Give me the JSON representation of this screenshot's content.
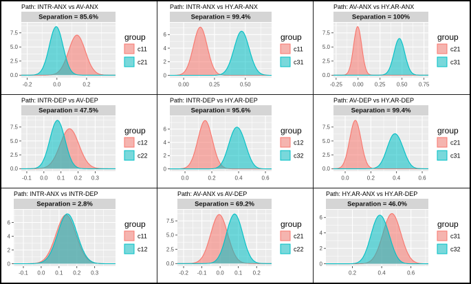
{
  "figure": {
    "legend_title": "group",
    "colors": {
      "pink_stroke": "#F8766D",
      "pink_fill": "rgba(248,118,109,0.55)",
      "pink_key_fill": "#F5B4AF",
      "teal_stroke": "#00BFC4",
      "teal_fill": "rgba(0,191,196,0.55)",
      "teal_key_fill": "#79D8DB",
      "panel_bg": "#EBEBEB",
      "strip_bg": "#D5D5D5",
      "gridline": "#FFFFFF",
      "axis_text": "#4D4D4D",
      "tick_mark": "#333333",
      "title_text": "#000000",
      "border": "#000000"
    }
  },
  "chart_data": {
    "type": "area",
    "subtype": "density-grid-3x3",
    "legend_title": "group",
    "panels": [
      {
        "title": "Path: INTR-ANX vs AV-ANX",
        "separation_label": "Separation = 85.6%",
        "xlim": [
          -0.24,
          0.395
        ],
        "xticks": [
          -0.2,
          0.0,
          0.2
        ],
        "xtick_labels": [
          "-0.2",
          "0.0",
          "0.2"
        ],
        "ylim": [
          -0.45,
          9.3
        ],
        "yticks": [
          0,
          2.5,
          5,
          7.5
        ],
        "ytick_labels": [
          "0.0",
          "2.5",
          "5.0",
          "7.5"
        ],
        "series": [
          {
            "name": "c11",
            "color": "pink",
            "peak": 7.1,
            "components": [
              {
                "m": 0.135,
                "s": 0.0562,
                "w": 1
              }
            ]
          },
          {
            "name": "c21",
            "color": "teal",
            "peak": 8.6,
            "components": [
              {
                "m": -0.005,
                "s": 0.0464,
                "w": 1
              }
            ]
          }
        ]
      },
      {
        "title": "Path: INTR-ANX vs HY.AR-ANX",
        "separation_label": "Separation = 99.4%",
        "xlim": [
          -0.112,
          0.713
        ],
        "xticks": [
          0.0,
          0.25,
          0.5
        ],
        "xtick_labels": [
          "0.00",
          "0.25",
          "0.50"
        ],
        "ylim": [
          -0.35,
          7.75
        ],
        "yticks": [
          0,
          2,
          4,
          6
        ],
        "ytick_labels": [
          "0",
          "2",
          "4",
          "6"
        ],
        "series": [
          {
            "name": "c11",
            "color": "pink",
            "peak": 7.1,
            "components": [
              {
                "m": 0.135,
                "s": 0.0562,
                "w": 1
              }
            ]
          },
          {
            "name": "c31",
            "color": "teal",
            "peak": 6.5,
            "components": [
              {
                "m": 0.47,
                "s": 0.0614,
                "w": 1
              }
            ]
          }
        ]
      },
      {
        "title": "Path: AV-ANX vs HY.AR-ANX",
        "separation_label": "Separation = 100%",
        "xlim": [
          -0.28,
          0.8
        ],
        "xticks": [
          -0.25,
          0.0,
          0.25,
          0.5,
          0.75
        ],
        "xtick_labels": [
          "-0.25",
          "0.00",
          "0.25",
          "0.50",
          "0.75"
        ],
        "ylim": [
          -0.45,
          9.3
        ],
        "yticks": [
          0,
          2.5,
          5,
          7.5
        ],
        "ytick_labels": [
          "0.0",
          "2.5",
          "5.0",
          "7.5"
        ],
        "series": [
          {
            "name": "c21",
            "color": "pink",
            "peak": 8.6,
            "components": [
              {
                "m": -0.005,
                "s": 0.0464,
                "w": 1
              }
            ]
          },
          {
            "name": "c31",
            "color": "teal",
            "peak": 6.5,
            "components": [
              {
                "m": 0.47,
                "s": 0.0614,
                "w": 1
              }
            ]
          }
        ]
      },
      {
        "title": "Path: INTR-DEP vs AV-DEP",
        "separation_label": "Separation = 47.5%",
        "xlim": [
          -0.132,
          0.419
        ],
        "xticks": [
          -0.1,
          0.0,
          0.1,
          0.2,
          0.3
        ],
        "xtick_labels": [
          "-0.1",
          "0.0",
          "0.1",
          "0.2",
          "0.3"
        ],
        "ylim": [
          -0.45,
          9.45
        ],
        "yticks": [
          0,
          2.5,
          5,
          7.5
        ],
        "ytick_labels": [
          "0.0",
          "2.5",
          "5.0",
          "7.5"
        ],
        "series": [
          {
            "name": "c12",
            "color": "pink",
            "peak": 7.2,
            "components": [
              {
                "m": 0.15,
                "s": 0.055,
                "w": 1
              }
            ]
          },
          {
            "name": "c22",
            "color": "teal",
            "peak": 8.7,
            "components": [
              {
                "m": 0.062,
                "s": 0.04,
                "w": 1
              },
              {
                "m": 0.097,
                "s": 0.04,
                "w": 0.97
              }
            ]
          }
        ]
      },
      {
        "title": "Path: INTR-DEP vs HY.AR-DEP",
        "separation_label": "Separation = 95.6%",
        "xlim": [
          -0.113,
          0.646
        ],
        "xticks": [
          0.0,
          0.2,
          0.4,
          0.6
        ],
        "xtick_labels": [
          "0.0",
          "0.2",
          "0.4",
          "0.6"
        ],
        "ylim": [
          -0.35,
          7.95
        ],
        "yticks": [
          0,
          2,
          4,
          6
        ],
        "ytick_labels": [
          "0",
          "2",
          "4",
          "6"
        ],
        "series": [
          {
            "name": "c12",
            "color": "pink",
            "peak": 7.3,
            "components": [
              {
                "m": 0.15,
                "s": 0.054,
                "w": 1
              }
            ]
          },
          {
            "name": "c32",
            "color": "teal",
            "peak": 6.3,
            "components": [
              {
                "m": 0.372,
                "s": 0.052,
                "w": 1
              },
              {
                "m": 0.437,
                "s": 0.046,
                "w": 0.42
              }
            ]
          }
        ]
      },
      {
        "title": "Path: AV-DEP vs HY.AR-DEP",
        "separation_label": "Separation = 99.4%",
        "xlim": [
          -0.091,
          0.648
        ],
        "xticks": [
          0.0,
          0.2,
          0.4,
          0.6
        ],
        "xtick_labels": [
          "0.0",
          "0.2",
          "0.4",
          "0.6"
        ],
        "ylim": [
          -0.45,
          9.45
        ],
        "yticks": [
          0,
          2.5,
          5,
          7.5
        ],
        "ytick_labels": [
          "0.0",
          "2.5",
          "5.0",
          "7.5"
        ],
        "series": [
          {
            "name": "c21",
            "color": "pink",
            "peak": 8.7,
            "components": [
              {
                "m": 0.062,
                "s": 0.04,
                "w": 1
              },
              {
                "m": 0.097,
                "s": 0.04,
                "w": 0.97
              }
            ]
          },
          {
            "name": "c31",
            "color": "teal",
            "peak": 6.3,
            "components": [
              {
                "m": 0.372,
                "s": 0.052,
                "w": 1
              },
              {
                "m": 0.437,
                "s": 0.046,
                "w": 0.42
              }
            ]
          }
        ]
      },
      {
        "title": "Path: INTR-ANX vs INTR-DEP",
        "separation_label": "Separation = 2.8%",
        "xlim": [
          -0.154,
          0.417
        ],
        "xticks": [
          -0.1,
          0.0,
          0.1,
          0.2,
          0.3
        ],
        "xtick_labels": [
          "-0.1",
          "0.0",
          "0.1",
          "0.2",
          "0.3"
        ],
        "ylim": [
          -0.35,
          7.85
        ],
        "yticks": [
          0,
          2,
          4,
          6
        ],
        "ytick_labels": [
          "0",
          "2",
          "4",
          "6"
        ],
        "series": [
          {
            "name": "c11",
            "color": "pink",
            "peak": 7.1,
            "components": [
              {
                "m": 0.139,
                "s": 0.056,
                "w": 1
              }
            ]
          },
          {
            "name": "c12",
            "color": "teal",
            "peak": 7.25,
            "components": [
              {
                "m": 0.147,
                "s": 0.0545,
                "w": 1
              }
            ]
          }
        ]
      },
      {
        "title": "Path: AV-ANX vs AV-DEP",
        "separation_label": "Separation = 69.2%",
        "xlim": [
          -0.234,
          0.282
        ],
        "xticks": [
          -0.2,
          -0.1,
          0.0,
          0.1,
          0.2
        ],
        "xtick_labels": [
          "-0.2",
          "-0.1",
          "0.0",
          "0.1",
          "0.2"
        ],
        "ylim": [
          -0.45,
          9.45
        ],
        "yticks": [
          0,
          2.5,
          5,
          7.5
        ],
        "ytick_labels": [
          "0.0",
          "2.5",
          "5.0",
          "7.5"
        ],
        "series": [
          {
            "name": "c21",
            "color": "pink",
            "peak": 8.6,
            "components": [
              {
                "m": -0.005,
                "s": 0.0464,
                "w": 1
              }
            ]
          },
          {
            "name": "c22",
            "color": "teal",
            "peak": 8.7,
            "components": [
              {
                "m": 0.062,
                "s": 0.04,
                "w": 1
              },
              {
                "m": 0.097,
                "s": 0.04,
                "w": 0.97
              }
            ]
          }
        ]
      },
      {
        "title": "Path: HY.AR-ANX vs HY.AR-DEP",
        "separation_label": "Separation = 46.0%",
        "xlim": [
          0.019,
          0.719
        ],
        "xticks": [
          0.2,
          0.4,
          0.6
        ],
        "xtick_labels": [
          "0.2",
          "0.4",
          "0.6"
        ],
        "ylim": [
          -0.3,
          7.0
        ],
        "yticks": [
          0,
          2,
          4,
          6
        ],
        "ytick_labels": [
          "0",
          "2",
          "4",
          "6"
        ],
        "series": [
          {
            "name": "c31",
            "color": "pink",
            "peak": 6.5,
            "components": [
              {
                "m": 0.47,
                "s": 0.0614,
                "w": 1
              }
            ]
          },
          {
            "name": "c32",
            "color": "teal",
            "peak": 6.3,
            "components": [
              {
                "m": 0.372,
                "s": 0.052,
                "w": 1
              },
              {
                "m": 0.437,
                "s": 0.046,
                "w": 0.42
              }
            ]
          }
        ]
      }
    ]
  }
}
